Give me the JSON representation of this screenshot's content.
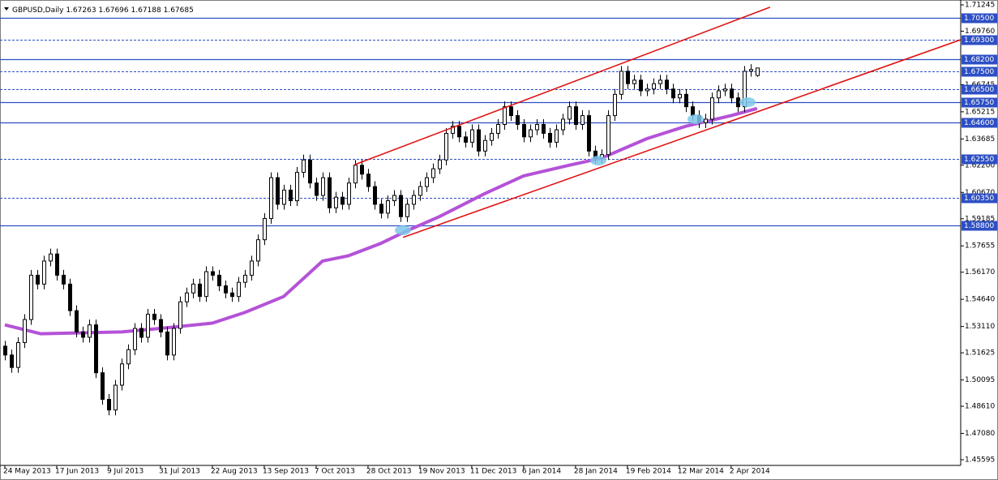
{
  "chart_data": {
    "type": "candlestick",
    "title": "GBPUSD,Daily",
    "xlim": [
      -0.75,
      147.4
    ],
    "ylim": [
      1.45275,
      1.71519
    ],
    "grid": false,
    "up_color": "#ffffff",
    "down_color": "#000000",
    "xticks": [
      {
        "value": 0,
        "label": "24 May 2013"
      },
      {
        "value": 8,
        "label": "17 Jun 2013"
      },
      {
        "value": 16,
        "label": "9 Jul 2013"
      },
      {
        "value": 24,
        "label": "31 Jul 2013"
      },
      {
        "value": 32,
        "label": "22 Aug 2013"
      },
      {
        "value": 40,
        "label": "13 Sep 2013"
      },
      {
        "value": 48,
        "label": "7 Oct 2013"
      },
      {
        "value": 56,
        "label": "28 Oct 2013"
      },
      {
        "value": 64,
        "label": "19 Nov 2013"
      },
      {
        "value": 72,
        "label": "11 Dec 2013"
      },
      {
        "value": 80,
        "label": "6 Jan 2014"
      },
      {
        "value": 88,
        "label": "28 Jan 2014"
      },
      {
        "value": 96,
        "label": "19 Feb 2014"
      },
      {
        "value": 104,
        "label": "12 Mar 2014"
      },
      {
        "value": 112,
        "label": "2 Apr 2014"
      }
    ],
    "yticks": [
      1.71245,
      {
        "value": 1.6976,
        "label": "1.69760"
      },
      1.66745,
      1.65215,
      1.63685,
      {
        "value": 1.622,
        "label": "1.62200"
      },
      {
        "value": 1.6067,
        "label": "1.60670"
      },
      1.59185,
      1.57655,
      {
        "value": 1.5617,
        "label": "1.56170"
      },
      {
        "value": 1.5464,
        "label": "1.54640"
      },
      {
        "value": 1.5311,
        "label": "1.53110"
      },
      1.51625,
      1.50095,
      {
        "value": 1.4861,
        "label": "1.48610"
      },
      {
        "value": 1.4708,
        "label": "1.47080"
      },
      1.45595
    ],
    "levels": [
      {
        "value": 1.705,
        "label": "1.70500",
        "style": "solid"
      },
      {
        "value": 1.693,
        "label": "1.69300",
        "style": "dashed"
      },
      {
        "value": 1.682,
        "label": "1.68200",
        "style": "solid"
      },
      {
        "value": 1.675,
        "label": "1.67500",
        "style": "dashed"
      },
      {
        "value": 1.665,
        "label": "1.66500",
        "style": "dashed"
      },
      {
        "value": 1.6575,
        "label": "1.65750",
        "style": "solid"
      },
      {
        "value": 1.646,
        "label": "1.64600",
        "style": "solid"
      },
      {
        "value": 1.6255,
        "label": "1.62550",
        "style": "dashed"
      },
      {
        "value": 1.6035,
        "label": "1.60350",
        "style": "dashed"
      },
      {
        "value": 1.588,
        "label": "1.58800",
        "style": "solid"
      }
    ],
    "level_color": "#2d4fc4",
    "trendline_color": "#e01010",
    "trendlines": [
      {
        "x": [
          53.9,
          118
        ],
        "values": [
          1.6223,
          1.7111
        ]
      },
      {
        "x": [
          61.4,
          147.4
        ],
        "values": [
          1.5813,
          1.6928
        ]
      }
    ],
    "moving_average": {
      "color": "#b452d8",
      "x": [
        0,
        5.5,
        18,
        24,
        32,
        37,
        43,
        49,
        53,
        58,
        62,
        67,
        74,
        80,
        87,
        92,
        99,
        105,
        112,
        116
      ],
      "values": [
        1.532,
        1.527,
        1.528,
        1.53,
        1.533,
        1.539,
        1.548,
        1.568,
        1.571,
        1.578,
        1.585,
        1.593,
        1.606,
        1.616,
        1.622,
        1.626,
        1.637,
        1.644,
        1.65,
        1.654
      ]
    },
    "candles": [
      [
        1.52,
        1.523,
        1.512,
        1.515
      ],
      [
        1.515,
        1.518,
        1.505,
        1.508
      ],
      [
        1.508,
        1.525,
        1.505,
        1.522
      ],
      [
        1.522,
        1.538,
        1.519,
        1.535
      ],
      [
        1.535,
        1.563,
        1.532,
        1.56
      ],
      [
        1.56,
        1.563,
        1.552,
        1.555
      ],
      [
        1.555,
        1.571,
        1.552,
        1.568
      ],
      [
        1.568,
        1.575,
        1.565,
        1.572
      ],
      [
        1.572,
        1.575,
        1.557,
        1.56
      ],
      [
        1.56,
        1.563,
        1.552,
        1.555
      ],
      [
        1.555,
        1.558,
        1.537,
        1.54
      ],
      [
        1.54,
        1.543,
        1.525,
        1.528
      ],
      [
        1.528,
        1.531,
        1.522,
        1.525
      ],
      [
        1.525,
        1.535,
        1.522,
        1.532
      ],
      [
        1.532,
        1.535,
        1.502,
        1.505
      ],
      [
        1.505,
        1.508,
        1.487,
        1.49
      ],
      [
        1.49,
        1.493,
        1.481,
        1.484
      ],
      [
        1.484,
        1.501,
        1.481,
        1.498
      ],
      [
        1.498,
        1.513,
        1.495,
        1.51
      ],
      [
        1.51,
        1.521,
        1.507,
        1.518
      ],
      [
        1.518,
        1.533,
        1.515,
        1.53
      ],
      [
        1.53,
        1.533,
        1.522,
        1.525
      ],
      [
        1.525,
        1.541,
        1.522,
        1.538
      ],
      [
        1.538,
        1.541,
        1.532,
        1.535
      ],
      [
        1.535,
        1.538,
        1.525,
        1.528
      ],
      [
        1.528,
        1.531,
        1.512,
        1.515
      ],
      [
        1.515,
        1.533,
        1.512,
        1.53
      ],
      [
        1.53,
        1.548,
        1.527,
        1.545
      ],
      [
        1.545,
        1.553,
        1.542,
        1.55
      ],
      [
        1.55,
        1.558,
        1.547,
        1.555
      ],
      [
        1.555,
        1.558,
        1.545,
        1.548
      ],
      [
        1.548,
        1.565,
        1.545,
        1.562
      ],
      [
        1.562,
        1.565,
        1.557,
        1.56
      ],
      [
        1.56,
        1.563,
        1.551,
        1.554
      ],
      [
        1.554,
        1.557,
        1.547,
        1.55
      ],
      [
        1.55,
        1.553,
        1.545,
        1.548
      ],
      [
        1.548,
        1.559,
        1.545,
        1.556
      ],
      [
        1.556,
        1.563,
        1.553,
        1.56
      ],
      [
        1.56,
        1.571,
        1.557,
        1.568
      ],
      [
        1.568,
        1.583,
        1.565,
        1.58
      ],
      [
        1.58,
        1.595,
        1.577,
        1.592
      ],
      [
        1.592,
        1.618,
        1.589,
        1.615
      ],
      [
        1.615,
        1.618,
        1.597,
        1.6
      ],
      [
        1.6,
        1.611,
        1.597,
        1.608
      ],
      [
        1.608,
        1.611,
        1.599,
        1.602
      ],
      [
        1.602,
        1.621,
        1.599,
        1.618
      ],
      [
        1.618,
        1.628,
        1.615,
        1.625
      ],
      [
        1.625,
        1.628,
        1.609,
        1.612
      ],
      [
        1.612,
        1.615,
        1.602,
        1.605
      ],
      [
        1.605,
        1.618,
        1.602,
        1.615
      ],
      [
        1.615,
        1.618,
        1.595,
        1.598
      ],
      [
        1.598,
        1.607,
        1.595,
        1.604
      ],
      [
        1.604,
        1.607,
        1.597,
        1.6
      ],
      [
        1.6,
        1.615,
        1.597,
        1.612
      ],
      [
        1.612,
        1.625,
        1.609,
        1.622
      ],
      [
        1.622,
        1.625,
        1.614,
        1.617
      ],
      [
        1.617,
        1.62,
        1.607,
        1.61
      ],
      [
        1.61,
        1.613,
        1.597,
        1.6
      ],
      [
        1.6,
        1.603,
        1.592,
        1.595
      ],
      [
        1.595,
        1.605,
        1.592,
        1.602
      ],
      [
        1.602,
        1.608,
        1.599,
        1.605
      ],
      [
        1.605,
        1.608,
        1.59,
        1.593
      ],
      [
        1.593,
        1.603,
        1.59,
        1.6
      ],
      [
        1.6,
        1.608,
        1.597,
        1.605
      ],
      [
        1.605,
        1.613,
        1.602,
        1.61
      ],
      [
        1.61,
        1.618,
        1.607,
        1.615
      ],
      [
        1.615,
        1.623,
        1.612,
        1.62
      ],
      [
        1.62,
        1.628,
        1.617,
        1.625
      ],
      [
        1.625,
        1.643,
        1.622,
        1.64
      ],
      [
        1.64,
        1.647,
        1.637,
        1.644
      ],
      [
        1.644,
        1.647,
        1.635,
        1.638
      ],
      [
        1.638,
        1.641,
        1.632,
        1.635
      ],
      [
        1.635,
        1.645,
        1.632,
        1.642
      ],
      [
        1.642,
        1.645,
        1.627,
        1.63
      ],
      [
        1.63,
        1.639,
        1.627,
        1.636
      ],
      [
        1.636,
        1.643,
        1.633,
        1.64
      ],
      [
        1.64,
        1.648,
        1.637,
        1.645
      ],
      [
        1.645,
        1.658,
        1.642,
        1.655
      ],
      [
        1.655,
        1.658,
        1.647,
        1.65
      ],
      [
        1.65,
        1.653,
        1.642,
        1.645
      ],
      [
        1.645,
        1.648,
        1.635,
        1.638
      ],
      [
        1.638,
        1.645,
        1.635,
        1.642
      ],
      [
        1.642,
        1.648,
        1.639,
        1.645
      ],
      [
        1.645,
        1.648,
        1.637,
        1.64
      ],
      [
        1.64,
        1.643,
        1.632,
        1.635
      ],
      [
        1.635,
        1.645,
        1.632,
        1.642
      ],
      [
        1.642,
        1.651,
        1.639,
        1.648
      ],
      [
        1.648,
        1.658,
        1.645,
        1.655
      ],
      [
        1.655,
        1.658,
        1.642,
        1.645
      ],
      [
        1.645,
        1.653,
        1.642,
        1.65
      ],
      [
        1.65,
        1.653,
        1.627,
        1.63
      ],
      [
        1.63,
        1.633,
        1.623,
        1.626
      ],
      [
        1.626,
        1.631,
        1.623,
        1.628
      ],
      [
        1.628,
        1.653,
        1.625,
        1.65
      ],
      [
        1.65,
        1.665,
        1.647,
        1.662
      ],
      [
        1.662,
        1.678,
        1.659,
        1.675
      ],
      [
        1.675,
        1.678,
        1.665,
        1.668
      ],
      [
        1.668,
        1.673,
        1.665,
        1.67
      ],
      [
        1.67,
        1.673,
        1.661,
        1.664
      ],
      [
        1.664,
        1.668,
        1.661,
        1.665
      ],
      [
        1.665,
        1.671,
        1.662,
        1.668
      ],
      [
        1.668,
        1.673,
        1.665,
        1.67
      ],
      [
        1.67,
        1.673,
        1.662,
        1.665
      ],
      [
        1.665,
        1.668,
        1.657,
        1.66
      ],
      [
        1.66,
        1.665,
        1.657,
        1.662
      ],
      [
        1.662,
        1.665,
        1.652,
        1.655
      ],
      [
        1.655,
        1.658,
        1.647,
        1.65
      ],
      [
        1.65,
        1.653,
        1.643,
        1.646
      ],
      [
        1.646,
        1.651,
        1.643,
        1.648
      ],
      [
        1.648,
        1.663,
        1.645,
        1.66
      ],
      [
        1.66,
        1.667,
        1.657,
        1.664
      ],
      [
        1.664,
        1.668,
        1.661,
        1.665
      ],
      [
        1.665,
        1.668,
        1.657,
        1.66
      ],
      [
        1.66,
        1.663,
        1.652,
        1.655
      ],
      [
        1.655,
        1.678,
        1.652,
        1.675
      ],
      [
        1.675,
        1.679,
        1.672,
        1.676
      ],
      [
        1.67263,
        1.67696,
        1.67188,
        1.67685
      ]
    ]
  }
}
